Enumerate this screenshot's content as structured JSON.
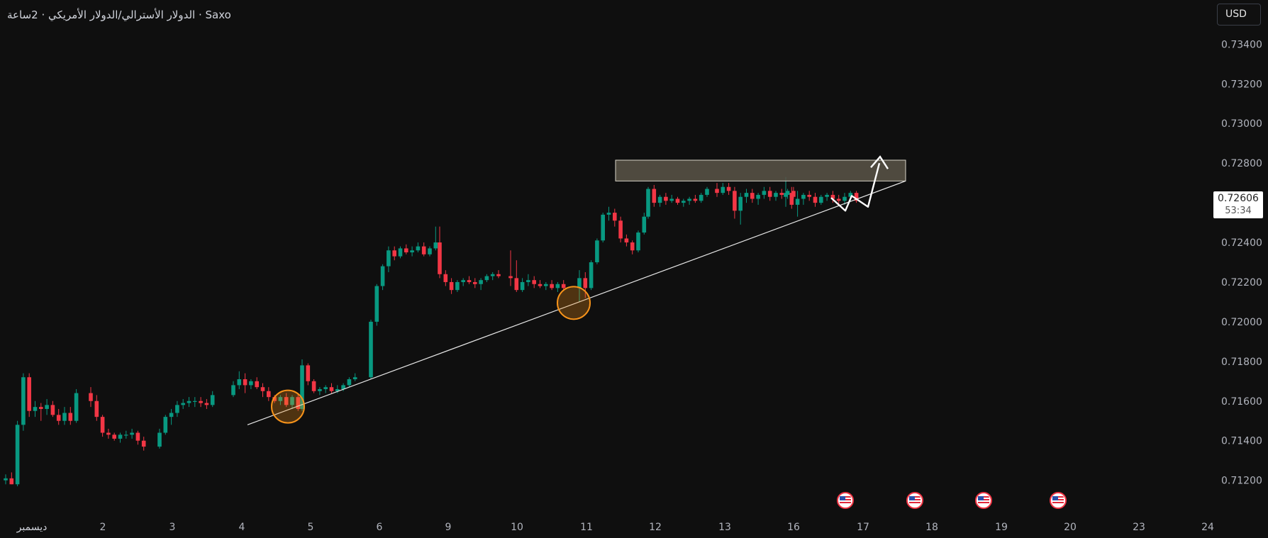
{
  "header": {
    "title": "Saxo · الدولار الأسترالي/الدولار الأمريكي · 2ساعة"
  },
  "currency_button": {
    "label": "USD"
  },
  "price_tag": {
    "price": "0.72606",
    "countdown": "53:34"
  },
  "colors": {
    "up": "#089981",
    "down": "#f23645",
    "background": "#0f0f0f",
    "axis_text": "#b2b5be",
    "zone": "#5a5548",
    "circle": "#f7931a"
  },
  "event_icons": [
    "us-flag-icon",
    "us-flag-icon",
    "us-flag-icon",
    "us-flag-icon"
  ],
  "chart_data": {
    "type": "candlestick",
    "title": "",
    "ylim": [
      0.7112,
      0.7348
    ],
    "y_ticks": [
      "0.73400",
      "0.73200",
      "0.73000",
      "0.72800",
      "0.72600",
      "0.72400",
      "0.72200",
      "0.72000",
      "0.71800",
      "0.71600",
      "0.71400",
      "0.71200"
    ],
    "x_ticks": [
      "ديسمبر",
      "2",
      "3",
      "4",
      "5",
      "6",
      "9",
      "10",
      "11",
      "12",
      "13",
      "16",
      "17",
      "18",
      "19",
      "20",
      "23",
      "24"
    ],
    "grid": false,
    "series": [
      {
        "segment": "dec1",
        "ohlc": [
          [
            0.712,
            0.7123,
            0.7118,
            0.7121
          ],
          [
            0.7121,
            0.7124,
            0.7118,
            0.7118
          ],
          [
            0.7118,
            0.715,
            0.7117,
            0.7148
          ],
          [
            0.7148,
            0.7174,
            0.7145,
            0.7172
          ],
          [
            0.7172,
            0.7174,
            0.7152,
            0.7155
          ],
          [
            0.7155,
            0.716,
            0.7152,
            0.7157
          ],
          [
            0.7157,
            0.7159,
            0.715,
            0.7156
          ],
          [
            0.7156,
            0.7161,
            0.7153,
            0.7158
          ],
          [
            0.7158,
            0.716,
            0.7152,
            0.7153
          ],
          [
            0.7153,
            0.7156,
            0.7148,
            0.715
          ],
          [
            0.715,
            0.7157,
            0.7148,
            0.7154
          ],
          [
            0.7154,
            0.7157,
            0.7148,
            0.715
          ],
          [
            0.715,
            0.7166,
            0.7149,
            0.7164
          ]
        ]
      },
      {
        "segment": "dec2",
        "ohlc": [
          [
            0.7164,
            0.7167,
            0.7157,
            0.716
          ],
          [
            0.716,
            0.7163,
            0.715,
            0.7152
          ],
          [
            0.7152,
            0.7153,
            0.7142,
            0.7144
          ],
          [
            0.7144,
            0.7146,
            0.7141,
            0.7143
          ],
          [
            0.7143,
            0.7144,
            0.714,
            0.7141
          ],
          [
            0.7141,
            0.7144,
            0.7139,
            0.7143
          ],
          [
            0.7143,
            0.7145,
            0.7141,
            0.7143
          ],
          [
            0.7143,
            0.7146,
            0.7141,
            0.7144
          ],
          [
            0.7144,
            0.7145,
            0.7138,
            0.714
          ],
          [
            0.714,
            0.7142,
            0.7135,
            0.7137
          ]
        ]
      },
      {
        "segment": "dec3",
        "ohlc": [
          [
            0.7137,
            0.7146,
            0.7136,
            0.7144
          ],
          [
            0.7144,
            0.7153,
            0.7143,
            0.7152
          ],
          [
            0.7152,
            0.7156,
            0.7148,
            0.7154
          ],
          [
            0.7154,
            0.716,
            0.7152,
            0.7158
          ],
          [
            0.7158,
            0.7161,
            0.7156,
            0.7159
          ],
          [
            0.7159,
            0.7162,
            0.7157,
            0.716
          ],
          [
            0.716,
            0.7162,
            0.7157,
            0.716
          ],
          [
            0.716,
            0.7162,
            0.7157,
            0.7159
          ],
          [
            0.7159,
            0.7161,
            0.7156,
            0.7158
          ],
          [
            0.7158,
            0.7165,
            0.7157,
            0.7163
          ]
        ]
      },
      {
        "segment": "dec4",
        "ohlc": [
          [
            0.7163,
            0.717,
            0.7162,
            0.7168
          ],
          [
            0.7168,
            0.7175,
            0.7166,
            0.7171
          ],
          [
            0.7171,
            0.7174,
            0.7164,
            0.7168
          ],
          [
            0.7168,
            0.7171,
            0.7166,
            0.717
          ],
          [
            0.717,
            0.7172,
            0.7166,
            0.7167
          ],
          [
            0.7167,
            0.7169,
            0.7162,
            0.7165
          ],
          [
            0.7165,
            0.7167,
            0.716,
            0.7162
          ],
          [
            0.7162,
            0.7163,
            0.7159,
            0.716
          ],
          [
            0.716,
            0.7163,
            0.7158,
            0.7162
          ],
          [
            0.7162,
            0.7164,
            0.7157,
            0.7158
          ],
          [
            0.7158,
            0.7163,
            0.7156,
            0.7162
          ],
          [
            0.7162,
            0.7164,
            0.7155,
            0.7156
          ]
        ]
      },
      {
        "segment": "dec5",
        "ohlc": [
          [
            0.7156,
            0.7181,
            0.7155,
            0.7178
          ],
          [
            0.7178,
            0.7179,
            0.7168,
            0.717
          ],
          [
            0.717,
            0.7171,
            0.7164,
            0.7165
          ],
          [
            0.7165,
            0.7167,
            0.7163,
            0.7166
          ],
          [
            0.7166,
            0.7168,
            0.7164,
            0.7167
          ],
          [
            0.7167,
            0.7169,
            0.7164,
            0.7165
          ],
          [
            0.7165,
            0.7168,
            0.7164,
            0.7166
          ],
          [
            0.7166,
            0.7169,
            0.7165,
            0.7168
          ],
          [
            0.7168,
            0.7172,
            0.7167,
            0.7171
          ],
          [
            0.7171,
            0.7174,
            0.717,
            0.7172
          ]
        ]
      },
      {
        "segment": "dec6",
        "ohlc": [
          [
            0.7172,
            0.7201,
            0.7171,
            0.72
          ],
          [
            0.72,
            0.7219,
            0.7198,
            0.7218
          ],
          [
            0.7218,
            0.7229,
            0.7216,
            0.7228
          ],
          [
            0.7228,
            0.7238,
            0.7225,
            0.7236
          ],
          [
            0.7236,
            0.7238,
            0.7231,
            0.7233
          ],
          [
            0.7233,
            0.7238,
            0.7232,
            0.7237
          ],
          [
            0.7237,
            0.7239,
            0.7234,
            0.7235
          ],
          [
            0.7235,
            0.7238,
            0.7233,
            0.7236
          ],
          [
            0.7236,
            0.724,
            0.7235,
            0.7238
          ],
          [
            0.7238,
            0.724,
            0.7233,
            0.7234
          ],
          [
            0.7234,
            0.7238,
            0.7233,
            0.7237
          ],
          [
            0.7237,
            0.7248,
            0.7236,
            0.724
          ]
        ]
      },
      {
        "segment": "dec9",
        "ohlc": [
          [
            0.724,
            0.7248,
            0.7222,
            0.7224
          ],
          [
            0.7224,
            0.7226,
            0.7218,
            0.722
          ],
          [
            0.722,
            0.7222,
            0.7214,
            0.7216
          ],
          [
            0.7216,
            0.7221,
            0.7215,
            0.722
          ],
          [
            0.722,
            0.7222,
            0.7218,
            0.7221
          ],
          [
            0.7221,
            0.7223,
            0.7219,
            0.722
          ],
          [
            0.722,
            0.7222,
            0.7217,
            0.7219
          ],
          [
            0.7219,
            0.7222,
            0.7216,
            0.7221
          ],
          [
            0.7221,
            0.7224,
            0.722,
            0.7223
          ],
          [
            0.7223,
            0.7225,
            0.7221,
            0.7224
          ],
          [
            0.7224,
            0.7226,
            0.7222,
            0.7223
          ]
        ]
      },
      {
        "segment": "dec10",
        "ohlc": [
          [
            0.7223,
            0.7236,
            0.7218,
            0.7222
          ],
          [
            0.7222,
            0.7231,
            0.7215,
            0.7216
          ],
          [
            0.7216,
            0.7222,
            0.7215,
            0.722
          ],
          [
            0.722,
            0.7224,
            0.7218,
            0.7221
          ],
          [
            0.7221,
            0.7223,
            0.7217,
            0.7219
          ],
          [
            0.7219,
            0.7221,
            0.7217,
            0.7218
          ],
          [
            0.7218,
            0.722,
            0.7216,
            0.7219
          ],
          [
            0.7219,
            0.7221,
            0.7216,
            0.7217
          ],
          [
            0.7217,
            0.722,
            0.7215,
            0.7219
          ],
          [
            0.7219,
            0.7221,
            0.7216,
            0.7217
          ]
        ]
      },
      {
        "segment": "dec11",
        "ohlc": [
          [
            0.7217,
            0.7226,
            0.721,
            0.7222
          ],
          [
            0.7222,
            0.7225,
            0.7212,
            0.7217
          ],
          [
            0.7217,
            0.7231,
            0.7216,
            0.723
          ],
          [
            0.723,
            0.7242,
            0.7229,
            0.7241
          ],
          [
            0.7241,
            0.7255,
            0.724,
            0.7254
          ],
          [
            0.7254,
            0.7258,
            0.7251,
            0.7255
          ],
          [
            0.7255,
            0.7257,
            0.7248,
            0.7251
          ],
          [
            0.7251,
            0.7253,
            0.724,
            0.7242
          ],
          [
            0.7242,
            0.7244,
            0.7238,
            0.724
          ],
          [
            0.724,
            0.7241,
            0.7234,
            0.7236
          ],
          [
            0.7236,
            0.7246,
            0.7235,
            0.7245
          ],
          [
            0.7245,
            0.7255,
            0.7244,
            0.7253
          ]
        ]
      },
      {
        "segment": "dec12",
        "ohlc": [
          [
            0.7253,
            0.7268,
            0.7252,
            0.7267
          ],
          [
            0.7267,
            0.7269,
            0.7258,
            0.726
          ],
          [
            0.726,
            0.7264,
            0.7258,
            0.7263
          ],
          [
            0.7263,
            0.7265,
            0.7259,
            0.7261
          ],
          [
            0.7261,
            0.7264,
            0.726,
            0.7262
          ],
          [
            0.7262,
            0.7263,
            0.7259,
            0.726
          ],
          [
            0.726,
            0.7262,
            0.7258,
            0.7261
          ],
          [
            0.7261,
            0.7263,
            0.7259,
            0.7262
          ],
          [
            0.7262,
            0.7264,
            0.726,
            0.7261
          ],
          [
            0.7261,
            0.7265,
            0.726,
            0.7264
          ],
          [
            0.7264,
            0.7268,
            0.7263,
            0.7267
          ]
        ]
      },
      {
        "segment": "dec13",
        "ohlc": [
          [
            0.7267,
            0.727,
            0.7263,
            0.7265
          ],
          [
            0.7265,
            0.727,
            0.7264,
            0.7268
          ],
          [
            0.7268,
            0.727,
            0.7264,
            0.7266
          ],
          [
            0.7266,
            0.7268,
            0.7252,
            0.7256
          ],
          [
            0.7256,
            0.7265,
            0.7249,
            0.7263
          ],
          [
            0.7263,
            0.7267,
            0.726,
            0.7265
          ],
          [
            0.7265,
            0.7267,
            0.726,
            0.7262
          ],
          [
            0.7262,
            0.7265,
            0.7259,
            0.7264
          ],
          [
            0.7264,
            0.7268,
            0.7262,
            0.7266
          ],
          [
            0.7266,
            0.7268,
            0.7261,
            0.7263
          ],
          [
            0.7263,
            0.7266,
            0.7261,
            0.7265
          ],
          [
            0.7265,
            0.7267,
            0.7262,
            0.7264
          ],
          [
            0.7264,
            0.7267,
            0.7262,
            0.7266
          ],
          [
            0.7266,
            0.7268,
            0.7262,
            0.7263
          ]
        ]
      },
      {
        "segment": "dec16",
        "ohlc": [
          [
            0.7263,
            0.7273,
            0.7258,
            0.7265
          ],
          [
            0.7265,
            0.7268,
            0.7257,
            0.7259
          ],
          [
            0.7259,
            0.7266,
            0.7253,
            0.7262
          ],
          [
            0.7262,
            0.7265,
            0.7259,
            0.7264
          ],
          [
            0.7264,
            0.7266,
            0.7261,
            0.7263
          ],
          [
            0.7263,
            0.7265,
            0.7258,
            0.726
          ],
          [
            0.726,
            0.7264,
            0.7259,
            0.7263
          ],
          [
            0.7263,
            0.7265,
            0.7261,
            0.7264
          ],
          [
            0.7264,
            0.7266,
            0.726,
            0.7262
          ],
          [
            0.7262,
            0.7264,
            0.7259,
            0.7261
          ],
          [
            0.7261,
            0.7265,
            0.7259,
            0.7263
          ],
          [
            0.7263,
            0.7266,
            0.7261,
            0.7265
          ],
          [
            0.7265,
            0.7266,
            0.726,
            0.7261
          ]
        ]
      }
    ],
    "drawings": {
      "resistance_zone": {
        "y_from": 0.7271,
        "y_to": 0.72815,
        "x_from_tick": "12",
        "x_to_tick": "18"
      },
      "trendline": {
        "from": [
          "4",
          0.7148
        ],
        "to": [
          "18",
          0.7271
        ]
      },
      "touch_circles": [
        {
          "x_tick": "5",
          "y": 0.71572
        },
        {
          "x_tick": "11",
          "y": 0.72095
        }
      ],
      "projection_path": "zigzag-up"
    }
  }
}
